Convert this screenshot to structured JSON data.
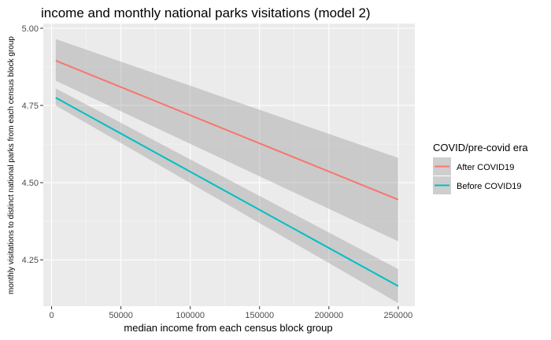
{
  "chart_data": {
    "type": "line",
    "title": "income and monthly national parks visitations (model 2)",
    "xlabel": "median income from each census block group",
    "ylabel": "monthly visitations to distinct national parks from each census block group",
    "xlim": [
      -6000,
      262000
    ],
    "ylim": [
      4.1,
      5.015
    ],
    "x_ticks": [
      0,
      50000,
      100000,
      150000,
      200000,
      250000
    ],
    "x_tick_labels": [
      "0",
      "50000",
      "100000",
      "150000",
      "200000",
      "250000"
    ],
    "y_ticks": [
      4.25,
      4.5,
      4.75,
      5.0
    ],
    "y_tick_labels": [
      "4.25",
      "4.50",
      "4.75",
      "5.00"
    ],
    "grid": true,
    "legend_title": "COVID/pre-covid era",
    "legend_position": "right",
    "series": [
      {
        "name": "After COVID19",
        "color": "#F8766D",
        "x": [
          3000,
          250000
        ],
        "y": [
          4.895,
          4.445
        ],
        "ci_lower": [
          4.83,
          4.31
        ],
        "ci_upper": [
          4.965,
          4.58
        ]
      },
      {
        "name": "Before COVID19",
        "color": "#00BFC4",
        "x": [
          3000,
          250000
        ],
        "y": [
          4.775,
          4.165
        ],
        "ci_lower": [
          4.75,
          4.11
        ],
        "ci_upper": [
          4.805,
          4.22
        ]
      }
    ]
  }
}
